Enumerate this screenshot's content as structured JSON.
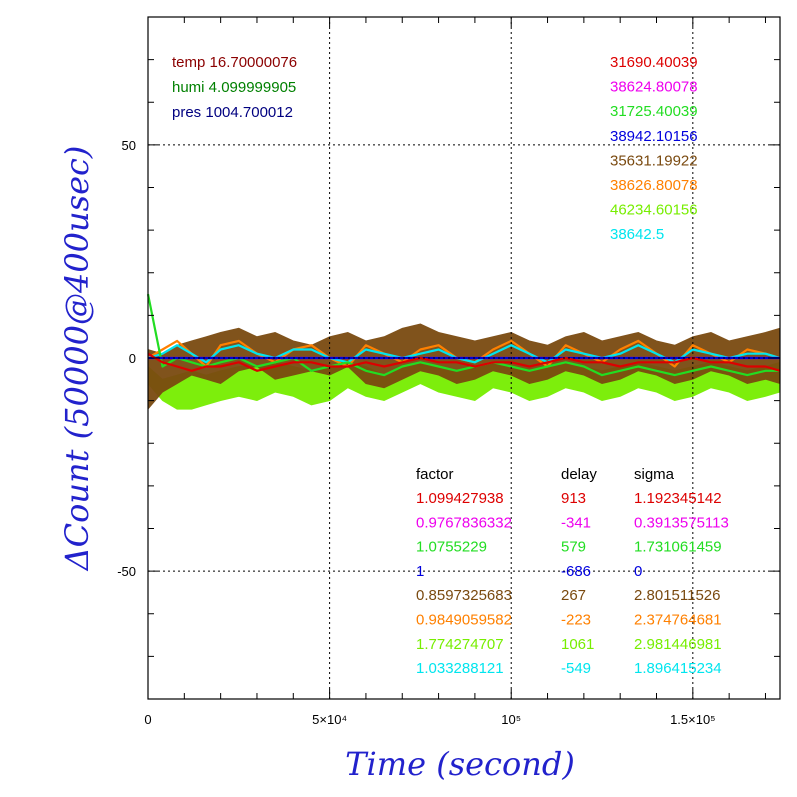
{
  "chart_data": {
    "type": "line",
    "xlabel": "Time (second)",
    "ylabel": "ΔCount (50000@400usec)",
    "xlim": [
      0,
      174000
    ],
    "ylim": [
      -80,
      80
    ],
    "x_ticks": [
      {
        "value": 0,
        "label": "0"
      },
      {
        "value": 50000,
        "label": "5×10⁴"
      },
      {
        "value": 100000,
        "label": "10⁵"
      },
      {
        "value": 150000,
        "label": "1.5×10⁵"
      }
    ],
    "y_ticks": [
      {
        "value": 50,
        "label": "50"
      },
      {
        "value": 0,
        "label": "0"
      },
      {
        "value": -50,
        "label": "-50"
      }
    ],
    "grid": true,
    "env_legend": [
      {
        "text": "temp 16.70000076",
        "color": "#8b0000"
      },
      {
        "text": "humi 4.099999905",
        "color": "#008000"
      },
      {
        "text": "pres 1004.700012",
        "color": "#000080"
      }
    ],
    "series_legend": [
      {
        "text": "31690.40039",
        "color": "#dd0000"
      },
      {
        "text": "38624.80078",
        "color": "#ee00ee"
      },
      {
        "text": "31725.40039",
        "color": "#22dd22"
      },
      {
        "text": "38942.10156",
        "color": "#0000dd"
      },
      {
        "text": "35631.19922",
        "color": "#7a4a10"
      },
      {
        "text": "38626.80078",
        "color": "#ff8000"
      },
      {
        "text": "46234.60156",
        "color": "#77ee00"
      },
      {
        "text": "38642.5",
        "color": "#00e5ee"
      }
    ],
    "table": {
      "headers": [
        "factor",
        "delay",
        "sigma"
      ],
      "rows": [
        {
          "factor": "1.099427938",
          "delay": "913",
          "sigma": "1.192345142",
          "color": "#dd0000"
        },
        {
          "factor": "0.9767836332",
          "delay": "-341",
          "sigma": "0.3913575113",
          "color": "#ee00ee"
        },
        {
          "factor": "1.0755229",
          "delay": "579",
          "sigma": "1.731061459",
          "color": "#22dd22"
        },
        {
          "factor": "1",
          "delay": "-686",
          "sigma": "0",
          "color": "#0000dd"
        },
        {
          "factor": "0.8597325683",
          "delay": "267",
          "sigma": "2.801511526",
          "color": "#7a4a10"
        },
        {
          "factor": "0.9849059582",
          "delay": "-223",
          "sigma": "2.374764681",
          "color": "#ff8000"
        },
        {
          "factor": "1.774274707",
          "delay": "1061",
          "sigma": "2.981446981",
          "color": "#77ee00"
        },
        {
          "factor": "1.033288121",
          "delay": "-549",
          "sigma": "1.896415234",
          "color": "#00e5ee"
        }
      ]
    },
    "series": [
      {
        "color": "#77ee00",
        "band": true,
        "x": [
          0,
          4000,
          8000,
          12000,
          16000,
          20000,
          25000,
          30000,
          35000,
          40000,
          45000,
          50000,
          55000,
          60000,
          65000,
          70000,
          75000,
          80000,
          85000,
          90000,
          95000,
          100000,
          105000,
          110000,
          115000,
          120000,
          125000,
          130000,
          135000,
          140000,
          145000,
          150000,
          155000,
          160000,
          165000,
          170000,
          174000
        ],
        "upper": [
          -2,
          -5,
          -4,
          -3,
          -4,
          -3,
          -2,
          -2,
          -1,
          -2,
          -3,
          -2,
          -1,
          -2,
          -4,
          -2,
          -1,
          -2,
          -3,
          -2,
          -1,
          -2,
          -3,
          -2,
          -1,
          -2,
          -3,
          -2,
          -1,
          -2,
          -3,
          -2,
          -1,
          -2,
          -3,
          -2,
          -1
        ],
        "lower": [
          -6,
          -10,
          -12,
          -12,
          -11,
          -10,
          -9,
          -10,
          -8,
          -9,
          -11,
          -10,
          -7,
          -9,
          -10,
          -8,
          -6,
          -8,
          -9,
          -10,
          -7,
          -8,
          -10,
          -9,
          -7,
          -8,
          -10,
          -9,
          -7,
          -8,
          -10,
          -9,
          -7,
          -8,
          -10,
          -9,
          -8
        ]
      },
      {
        "color": "#7a4a10",
        "band": true,
        "x": [
          0,
          4000,
          8000,
          12000,
          16000,
          20000,
          25000,
          30000,
          35000,
          40000,
          45000,
          50000,
          55000,
          60000,
          65000,
          70000,
          75000,
          80000,
          85000,
          90000,
          95000,
          100000,
          105000,
          110000,
          115000,
          120000,
          125000,
          130000,
          135000,
          140000,
          145000,
          150000,
          155000,
          160000,
          165000,
          170000,
          174000
        ],
        "upper": [
          2,
          1,
          3,
          4,
          5,
          6,
          7,
          5,
          6,
          4,
          3,
          5,
          6,
          4,
          5,
          7,
          8,
          6,
          5,
          4,
          5,
          6,
          4,
          3,
          5,
          6,
          4,
          5,
          6,
          4,
          3,
          5,
          6,
          4,
          5,
          6,
          7
        ],
        "lower": [
          -12,
          -8,
          -6,
          -4,
          -5,
          -6,
          -3,
          -2,
          -5,
          -4,
          -3,
          -4,
          -2,
          -6,
          -7,
          -5,
          -3,
          -4,
          -6,
          -5,
          -3,
          -4,
          -6,
          -5,
          -3,
          -4,
          -6,
          -5,
          -3,
          -4,
          -6,
          -5,
          -3,
          -4,
          -6,
          -5,
          -6
        ]
      },
      {
        "color": "#ff8000",
        "band": false,
        "x": [
          0,
          4000,
          8000,
          12000,
          16000,
          20000,
          25000,
          30000,
          35000,
          40000,
          45000,
          50000,
          55000,
          60000,
          65000,
          70000,
          75000,
          80000,
          85000,
          90000,
          95000,
          100000,
          105000,
          110000,
          115000,
          120000,
          125000,
          130000,
          135000,
          140000,
          145000,
          150000,
          155000,
          160000,
          165000,
          170000,
          174000
        ],
        "y": [
          0,
          2,
          4,
          1,
          -2,
          3,
          4,
          1,
          -1,
          2,
          3,
          0,
          -2,
          3,
          1,
          -1,
          2,
          3,
          0,
          -1,
          2,
          4,
          1,
          -2,
          3,
          1,
          -1,
          2,
          4,
          1,
          -2,
          3,
          1,
          -1,
          2,
          1,
          0
        ]
      },
      {
        "color": "#00e5ee",
        "band": false,
        "x": [
          0,
          4000,
          8000,
          12000,
          16000,
          20000,
          25000,
          30000,
          35000,
          40000,
          45000,
          50000,
          55000,
          60000,
          65000,
          70000,
          75000,
          80000,
          85000,
          90000,
          95000,
          100000,
          105000,
          110000,
          115000,
          120000,
          125000,
          130000,
          135000,
          140000,
          145000,
          150000,
          155000,
          160000,
          165000,
          170000,
          174000
        ],
        "y": [
          0,
          1,
          3,
          1,
          -1,
          2,
          3,
          1,
          0,
          2,
          2,
          0,
          -1,
          2,
          1,
          0,
          1,
          2,
          0,
          -1,
          1,
          3,
          1,
          -1,
          2,
          1,
          0,
          1,
          3,
          1,
          -1,
          2,
          1,
          0,
          1,
          1,
          0
        ]
      },
      {
        "color": "#22dd22",
        "band": false,
        "x": [
          0,
          4000,
          8000,
          12000,
          16000,
          20000,
          25000,
          30000,
          35000,
          40000,
          45000,
          50000,
          55000,
          60000,
          65000,
          70000,
          75000,
          80000,
          85000,
          90000,
          95000,
          100000,
          105000,
          110000,
          115000,
          120000,
          125000,
          130000,
          135000,
          140000,
          145000,
          150000,
          155000,
          160000,
          165000,
          170000,
          174000
        ],
        "y": [
          15,
          -2,
          0,
          -1,
          -2,
          -1,
          0,
          -2,
          -1,
          0,
          -3,
          -2,
          -1,
          -3,
          -4,
          -2,
          -1,
          -2,
          -3,
          -2,
          -1,
          -2,
          -3,
          -2,
          -1,
          -2,
          -4,
          -3,
          -2,
          -3,
          -4,
          -3,
          -2,
          -3,
          -4,
          -3,
          -3
        ]
      },
      {
        "color": "#ee00ee",
        "band": false,
        "x": [
          0,
          10000,
          20000,
          30000,
          40000,
          50000,
          60000,
          70000,
          80000,
          90000,
          100000,
          110000,
          120000,
          130000,
          140000,
          150000,
          160000,
          170000,
          174000
        ],
        "y": [
          0,
          0,
          0,
          0,
          0,
          0,
          0,
          0,
          0,
          0,
          0,
          0,
          0,
          0,
          0,
          0,
          0,
          0,
          0
        ]
      },
      {
        "color": "#0000dd",
        "band": false,
        "x": [
          0,
          10000,
          20000,
          30000,
          40000,
          50000,
          60000,
          70000,
          80000,
          90000,
          100000,
          110000,
          120000,
          130000,
          140000,
          150000,
          160000,
          170000,
          174000
        ],
        "y": [
          0,
          0,
          0,
          0,
          0,
          0,
          0,
          0,
          0,
          0,
          0,
          0,
          0,
          0,
          0,
          0,
          0,
          0,
          0
        ]
      },
      {
        "color": "#dd0000",
        "band": false,
        "x": [
          0,
          4000,
          8000,
          12000,
          16000,
          20000,
          25000,
          30000,
          35000,
          40000,
          45000,
          50000,
          55000,
          60000,
          65000,
          70000,
          75000,
          80000,
          85000,
          90000,
          95000,
          100000,
          105000,
          110000,
          115000,
          120000,
          125000,
          130000,
          135000,
          140000,
          145000,
          150000,
          155000,
          160000,
          165000,
          170000,
          174000
        ],
        "y": [
          1,
          -1,
          -2,
          -3,
          -2,
          -2,
          -1,
          -3,
          -2,
          -1,
          -1,
          -2,
          -2,
          -1,
          -2,
          -1,
          0,
          -1,
          -1,
          -2,
          -1,
          -1,
          -2,
          -1,
          0,
          -1,
          -1,
          -2,
          -1,
          -1,
          -1,
          0,
          -1,
          -1,
          -2,
          -2,
          -3
        ]
      }
    ]
  }
}
